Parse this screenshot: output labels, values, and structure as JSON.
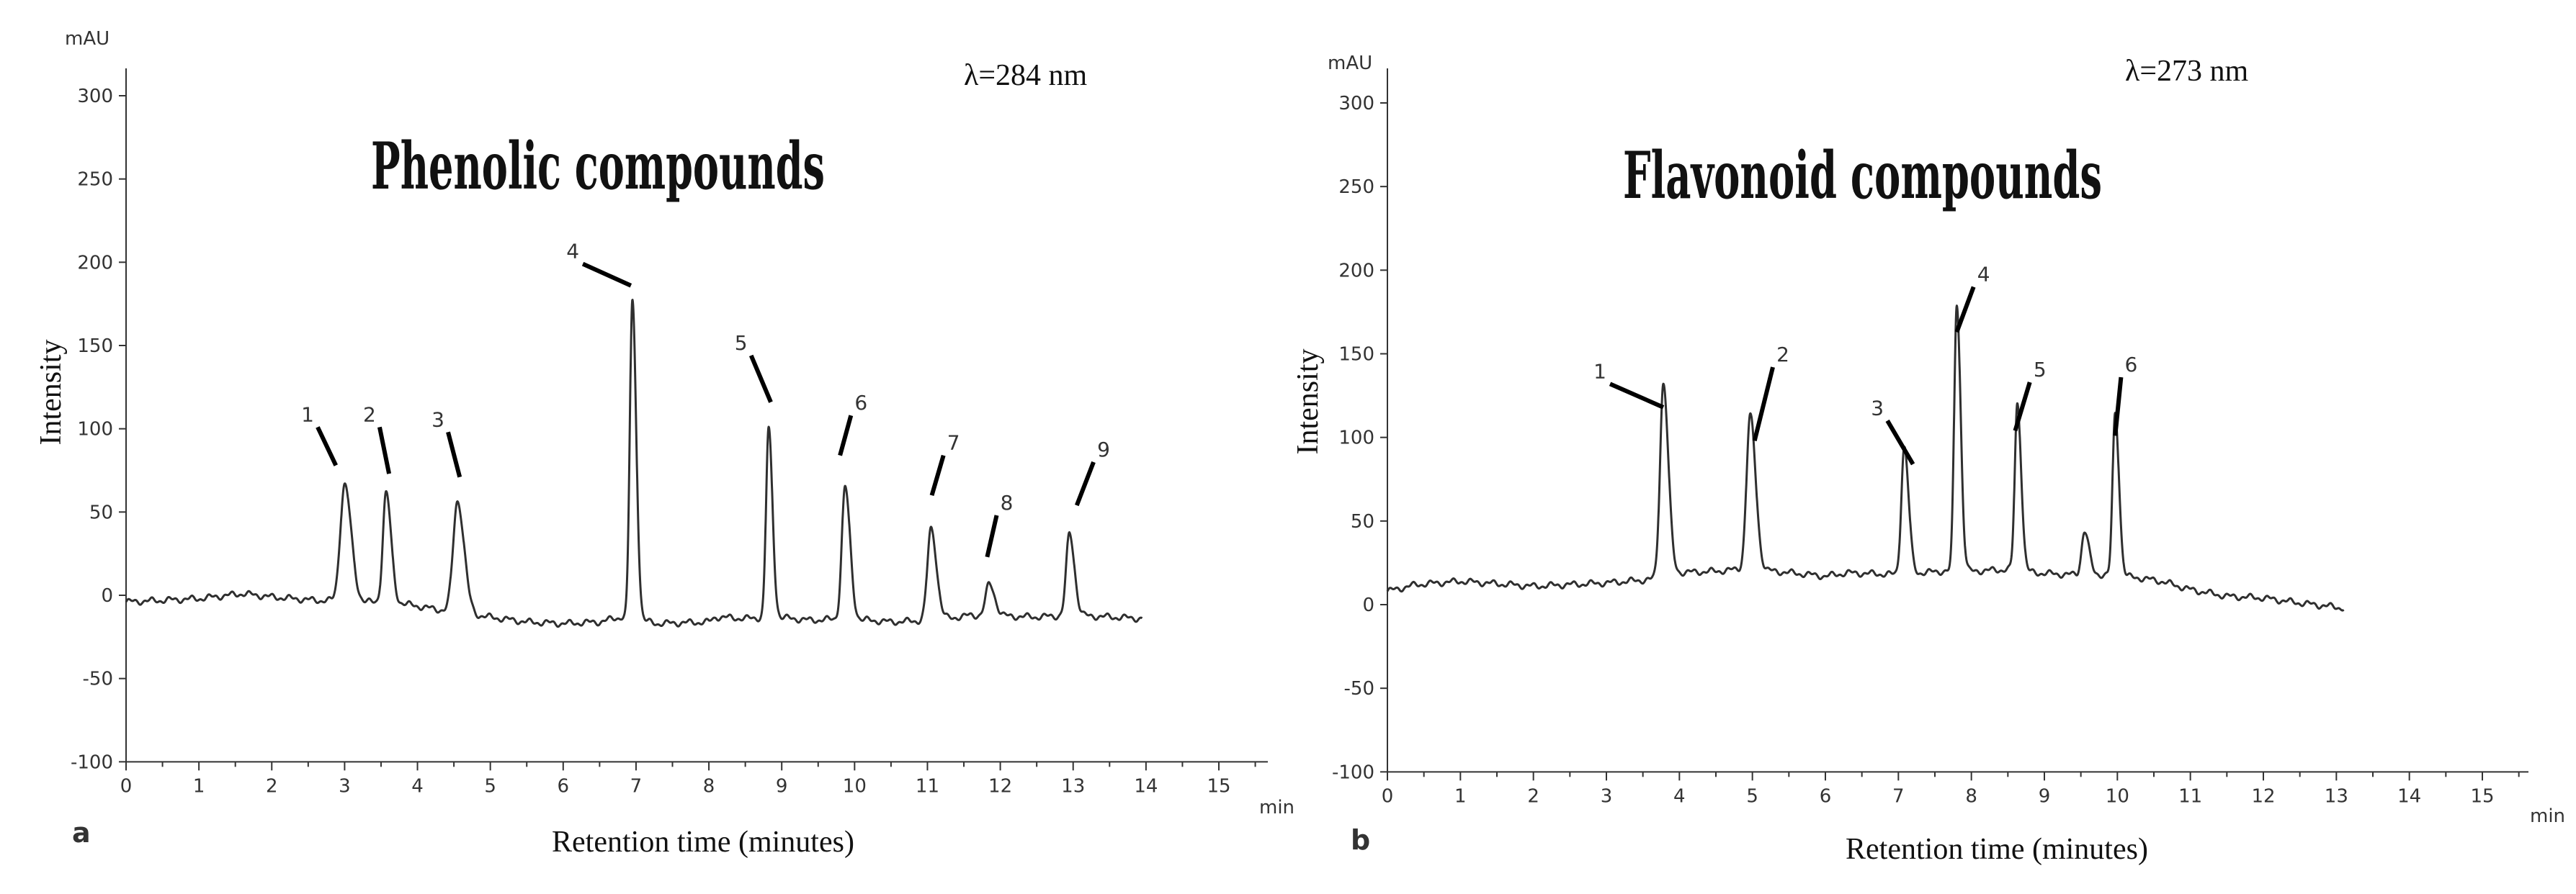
{
  "chart_data": [
    {
      "type": "line",
      "panel_label": "a",
      "title": "Phenolic compounds",
      "wavelength": "λ=284 nm",
      "ylabel": "Intensity",
      "xlabel": "Retention time (minutes)",
      "y_unit": "mAU",
      "x_unit": "min",
      "xlim": [
        0,
        15.5
      ],
      "ylim": [
        -100,
        310
      ],
      "xticks": [
        0,
        1,
        2,
        3,
        4,
        5,
        6,
        7,
        8,
        9,
        10,
        11,
        12,
        13,
        14,
        15
      ],
      "yticks": [
        -100,
        -50,
        0,
        50,
        100,
        150,
        200,
        250,
        300
      ],
      "baseline": [
        [
          0,
          -4
        ],
        [
          1,
          -2
        ],
        [
          1.6,
          1
        ],
        [
          2,
          -1
        ],
        [
          2.6,
          -3
        ],
        [
          3.3,
          -4
        ],
        [
          3.8,
          -5
        ],
        [
          4.2,
          -8
        ],
        [
          4.8,
          -12
        ],
        [
          5.5,
          -16
        ],
        [
          6.0,
          -17
        ],
        [
          6.5,
          -16
        ],
        [
          6.8,
          -13
        ],
        [
          7.3,
          -17
        ],
        [
          8.0,
          -16
        ],
        [
          8.1,
          -13
        ],
        [
          8.5,
          -14
        ],
        [
          8.9,
          -13
        ],
        [
          9.4,
          -15
        ],
        [
          9.9,
          -14
        ],
        [
          10.5,
          -16
        ],
        [
          11.1,
          -15
        ],
        [
          11.6,
          -12
        ],
        [
          12.5,
          -13
        ],
        [
          13.0,
          -12
        ],
        [
          13.5,
          -13
        ],
        [
          13.95,
          -14
        ]
      ],
      "peaks": [
        {
          "label": "1",
          "rt": 3.0,
          "height": 70,
          "width": 0.06,
          "callout": [
            [
              2.63,
              101
            ],
            [
              2.88,
              78
            ]
          ]
        },
        {
          "label": "2",
          "rt": 3.57,
          "height": 66,
          "width": 0.045,
          "callout": [
            [
              3.48,
              101
            ],
            [
              3.61,
              73
            ]
          ]
        },
        {
          "label": "3",
          "rt": 4.55,
          "height": 67,
          "width": 0.06,
          "callout": [
            [
              4.42,
              98
            ],
            [
              4.58,
              71
            ]
          ]
        },
        {
          "label": "4",
          "rt": 6.95,
          "height": 191,
          "width": 0.035,
          "callout": [
            [
              6.27,
              199
            ],
            [
              6.93,
              186
            ]
          ]
        },
        {
          "label": "5",
          "rt": 8.82,
          "height": 113,
          "width": 0.035,
          "callout": [
            [
              8.58,
              144
            ],
            [
              8.85,
              116
            ]
          ]
        },
        {
          "label": "6",
          "rt": 9.87,
          "height": 79,
          "width": 0.045,
          "callout": [
            [
              9.95,
              108
            ],
            [
              9.8,
              84
            ]
          ]
        },
        {
          "label": "7",
          "rt": 11.05,
          "height": 55,
          "width": 0.05,
          "callout": [
            [
              11.22,
              84
            ],
            [
              11.06,
              60
            ]
          ]
        },
        {
          "label": "8",
          "rt": 11.85,
          "height": 19,
          "width": 0.05,
          "callout": [
            [
              11.95,
              48
            ],
            [
              11.82,
              23
            ]
          ]
        },
        {
          "label": "9",
          "rt": 12.95,
          "height": 49,
          "width": 0.045,
          "callout": [
            [
              13.28,
              80
            ],
            [
              13.05,
              54
            ]
          ]
        }
      ]
    },
    {
      "type": "line",
      "panel_label": "b",
      "title": "Flavonoid compounds",
      "wavelength": "λ=273 nm",
      "ylabel": "Intensity",
      "xlabel": "Retention time (minutes)",
      "y_unit": "mAU",
      "x_unit": "min",
      "xlim": [
        0,
        15.5
      ],
      "ylim": [
        -100,
        310
      ],
      "xticks": [
        0,
        1,
        2,
        3,
        4,
        5,
        6,
        7,
        8,
        9,
        10,
        11,
        12,
        13,
        14,
        15
      ],
      "yticks": [
        -100,
        -50,
        0,
        50,
        100,
        150,
        200,
        250,
        300
      ],
      "baseline": [
        [
          0,
          8
        ],
        [
          0.4,
          12
        ],
        [
          1,
          14
        ],
        [
          2,
          11
        ],
        [
          3,
          13
        ],
        [
          3.6,
          15
        ],
        [
          3.9,
          19
        ],
        [
          4.5,
          20
        ],
        [
          4.8,
          21
        ],
        [
          5.3,
          20
        ],
        [
          6,
          17
        ],
        [
          6.3,
          19
        ],
        [
          7,
          18
        ],
        [
          7.3,
          19
        ],
        [
          7.6,
          20
        ],
        [
          8,
          20
        ],
        [
          8.5,
          21
        ],
        [
          8.9,
          19
        ],
        [
          9.3,
          18
        ],
        [
          9.8,
          18
        ],
        [
          10.3,
          16
        ],
        [
          10.6,
          14
        ],
        [
          11,
          9
        ],
        [
          11.5,
          5
        ],
        [
          12,
          4
        ],
        [
          12.5,
          1
        ],
        [
          13.1,
          -2
        ]
      ],
      "peaks": [
        {
          "label": "1",
          "rt": 3.78,
          "height": 115,
          "width": 0.045,
          "callout": [
            [
              3.05,
              132
            ],
            [
              3.78,
              118
            ]
          ]
        },
        {
          "label": "2",
          "rt": 4.97,
          "height": 92,
          "width": 0.05,
          "callout": [
            [
              5.28,
              142
            ],
            [
              5.03,
              98
            ]
          ]
        },
        {
          "label": "3",
          "rt": 7.08,
          "height": 76,
          "width": 0.04,
          "callout": [
            [
              6.85,
              110
            ],
            [
              7.2,
              84
            ]
          ]
        },
        {
          "label": "4",
          "rt": 7.8,
          "height": 160,
          "width": 0.035,
          "callout": [
            [
              8.03,
              190
            ],
            [
              7.8,
              163
            ]
          ]
        },
        {
          "label": "5",
          "rt": 8.63,
          "height": 100,
          "width": 0.035,
          "callout": [
            [
              8.8,
              133
            ],
            [
              8.6,
              104
            ]
          ]
        },
        {
          "label": "6",
          "rt": 9.97,
          "height": 97,
          "width": 0.035,
          "callout": [
            [
              10.05,
              136
            ],
            [
              9.97,
              101
            ]
          ]
        },
        {
          "label": "",
          "rt": 9.55,
          "height": 26,
          "width": 0.04
        }
      ]
    }
  ]
}
